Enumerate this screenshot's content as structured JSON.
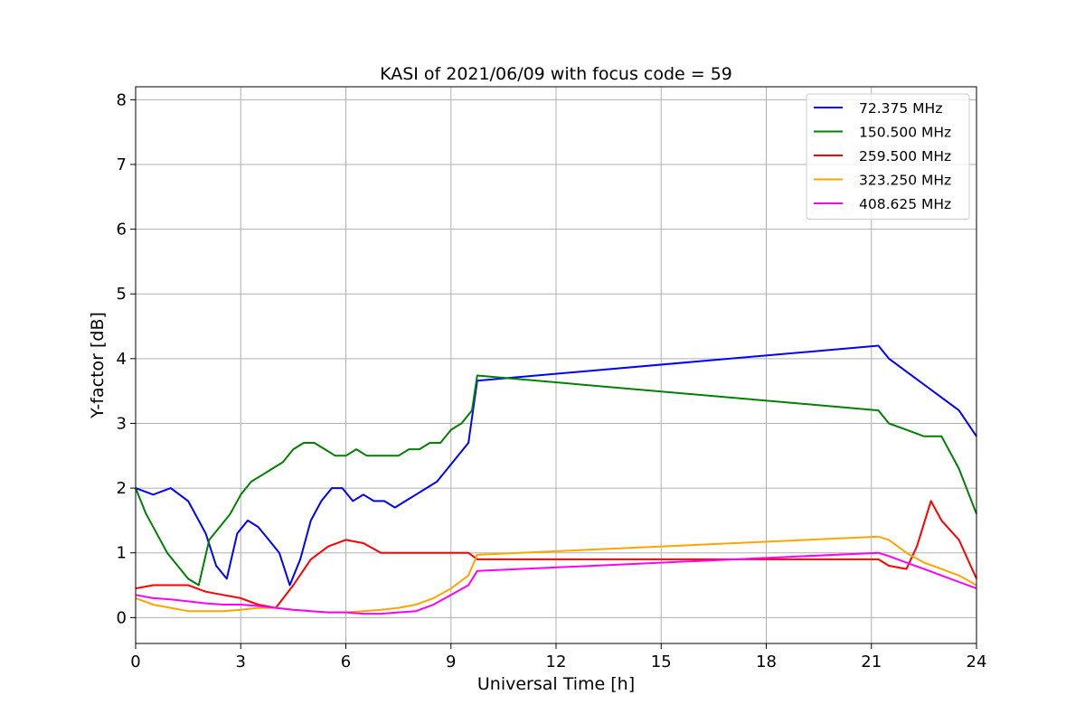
{
  "chart_data": {
    "type": "line",
    "title": "KASI of 2021/06/09 with focus code = 59",
    "xlabel": "Universal Time [h]",
    "ylabel": "Y-factor [dB]",
    "xlim": [
      0,
      24
    ],
    "ylim": [
      -0.4,
      8.2
    ],
    "xticks": [
      0,
      3,
      6,
      9,
      12,
      15,
      18,
      21,
      24
    ],
    "yticks": [
      0,
      1,
      2,
      3,
      4,
      5,
      6,
      7,
      8
    ],
    "grid": true,
    "legend_position": "top-right",
    "series": [
      {
        "name": " 72.375 MHz",
        "color": "#0000ff",
        "x": [
          0.0,
          0.5,
          1.0,
          1.5,
          2.0,
          2.3,
          2.6,
          2.9,
          3.2,
          3.5,
          3.8,
          4.1,
          4.4,
          4.7,
          5.0,
          5.3,
          5.6,
          5.9,
          6.2,
          6.5,
          6.8,
          7.1,
          7.4,
          7.7,
          8.0,
          8.3,
          8.6,
          8.9,
          9.2,
          9.5,
          9.75,
          21.2,
          21.5,
          22.0,
          22.5,
          23.0,
          23.5,
          24.0
        ],
        "y": [
          2.0,
          1.9,
          2.0,
          1.8,
          1.3,
          0.8,
          0.6,
          1.3,
          1.5,
          1.4,
          1.2,
          1.0,
          0.5,
          0.9,
          1.5,
          1.8,
          2.0,
          2.0,
          1.8,
          1.9,
          1.8,
          1.8,
          1.7,
          1.8,
          1.9,
          2.0,
          2.1,
          2.3,
          2.5,
          2.7,
          3.66,
          4.2,
          4.0,
          3.8,
          3.6,
          3.4,
          3.2,
          2.8
        ]
      },
      {
        "name": "150.500 MHz",
        "color": "#008000",
        "x": [
          0.0,
          0.3,
          0.6,
          0.9,
          1.2,
          1.5,
          1.8,
          2.1,
          2.4,
          2.7,
          3.0,
          3.3,
          3.6,
          3.9,
          4.2,
          4.5,
          4.8,
          5.1,
          5.4,
          5.7,
          6.0,
          6.3,
          6.6,
          6.9,
          7.2,
          7.5,
          7.8,
          8.1,
          8.4,
          8.7,
          9.0,
          9.3,
          9.6,
          9.75,
          21.2,
          21.5,
          22.0,
          22.5,
          23.0,
          23.5,
          24.0
        ],
        "y": [
          2.0,
          1.6,
          1.3,
          1.0,
          0.8,
          0.6,
          0.5,
          1.2,
          1.4,
          1.6,
          1.9,
          2.1,
          2.2,
          2.3,
          2.4,
          2.6,
          2.7,
          2.7,
          2.6,
          2.5,
          2.5,
          2.6,
          2.5,
          2.5,
          2.5,
          2.5,
          2.6,
          2.6,
          2.7,
          2.7,
          2.9,
          3.0,
          3.2,
          3.74,
          3.2,
          3.0,
          2.9,
          2.8,
          2.8,
          2.3,
          1.6
        ]
      },
      {
        "name": "259.500 MHz",
        "color": "#ff0000",
        "x": [
          0.0,
          0.5,
          1.0,
          1.5,
          2.0,
          2.5,
          3.0,
          3.5,
          4.0,
          4.5,
          5.0,
          5.5,
          6.0,
          6.5,
          7.0,
          7.5,
          8.0,
          8.5,
          9.0,
          9.5,
          9.75,
          21.2,
          21.5,
          22.0,
          22.3,
          22.7,
          23.0,
          23.5,
          24.0
        ],
        "y": [
          0.45,
          0.5,
          0.5,
          0.5,
          0.4,
          0.35,
          0.3,
          0.2,
          0.15,
          0.5,
          0.9,
          1.1,
          1.2,
          1.15,
          1.0,
          1.0,
          1.0,
          1.0,
          1.0,
          1.0,
          0.9,
          0.9,
          0.8,
          0.75,
          1.1,
          1.8,
          1.5,
          1.2,
          0.6
        ]
      },
      {
        "name": "323.250 MHz",
        "color": "#ffa500",
        "x": [
          0.0,
          0.5,
          1.0,
          1.5,
          2.0,
          2.5,
          3.0,
          3.5,
          4.0,
          4.5,
          5.0,
          5.5,
          6.0,
          6.5,
          7.0,
          7.5,
          8.0,
          8.5,
          9.0,
          9.5,
          9.75,
          21.2,
          21.5,
          22.0,
          22.5,
          23.0,
          23.5,
          24.0
        ],
        "y": [
          0.3,
          0.2,
          0.15,
          0.1,
          0.1,
          0.1,
          0.12,
          0.15,
          0.15,
          0.12,
          0.1,
          0.08,
          0.08,
          0.1,
          0.12,
          0.15,
          0.2,
          0.3,
          0.45,
          0.65,
          0.97,
          1.25,
          1.2,
          1.0,
          0.85,
          0.75,
          0.65,
          0.5
        ]
      },
      {
        "name": "408.625 MHz",
        "color": "#ff00ff",
        "x": [
          0.0,
          0.5,
          1.0,
          1.5,
          2.0,
          2.5,
          3.0,
          3.5,
          4.0,
          4.5,
          5.0,
          5.5,
          6.0,
          6.5,
          7.0,
          7.5,
          8.0,
          8.5,
          9.0,
          9.5,
          9.75,
          21.2,
          21.5,
          22.0,
          22.5,
          23.0,
          23.5,
          24.0
        ],
        "y": [
          0.35,
          0.3,
          0.28,
          0.25,
          0.22,
          0.2,
          0.2,
          0.18,
          0.15,
          0.12,
          0.1,
          0.08,
          0.08,
          0.06,
          0.06,
          0.08,
          0.1,
          0.2,
          0.35,
          0.5,
          0.72,
          1.0,
          0.95,
          0.85,
          0.75,
          0.65,
          0.55,
          0.45
        ]
      }
    ]
  }
}
